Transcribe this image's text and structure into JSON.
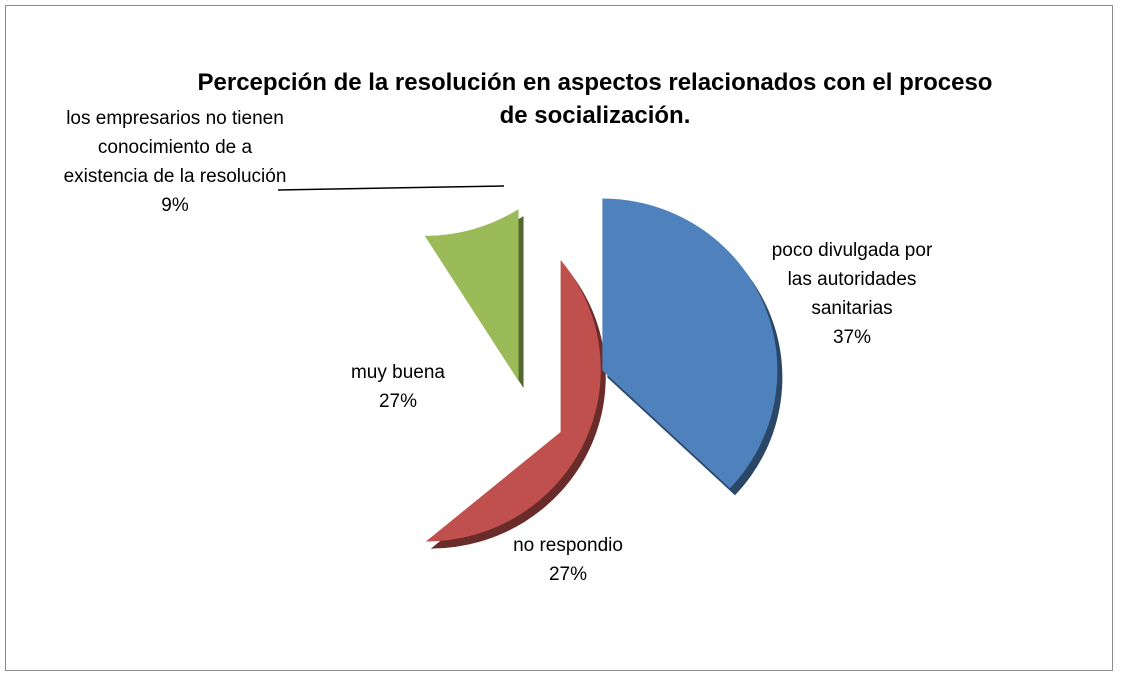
{
  "chart_data": {
    "type": "pie",
    "title": "Percepción de la resolución en aspectos  relacionados con el proceso de socialización.",
    "categories": [
      "poco divulgada por las autoridades sanitarias",
      "no respondio",
      "muy buena",
      "los empresarios no tienen conocimiento de a existencia de la resolución"
    ],
    "values": [
      37,
      27,
      27,
      9
    ],
    "value_labels": [
      "37%",
      "27%",
      "27%",
      "9%"
    ],
    "colors": [
      "#4f81bd",
      "#c0504d",
      "#9bbb59",
      "#8064a2"
    ]
  }
}
